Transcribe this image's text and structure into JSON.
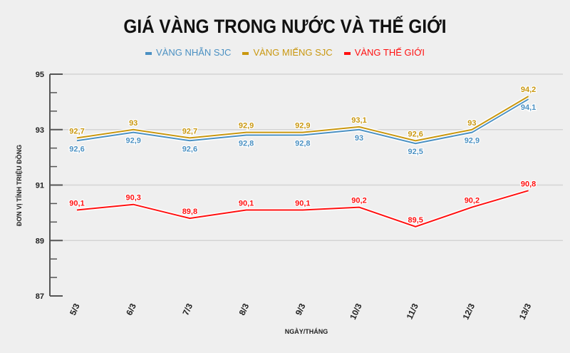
{
  "chart_data": {
    "type": "line",
    "title": "GIÁ VÀNG TRONG NƯỚC VÀ THẾ GIỚI",
    "xlabel": "NGÀY/THÁNG",
    "ylabel": "ĐƠN VỊ TÍNH TRIỆU ĐỒNG",
    "categories": [
      "5/3",
      "6/3",
      "7/3",
      "8/3",
      "9/3",
      "10/3",
      "11/3",
      "12/3",
      "13/3"
    ],
    "ylim": [
      87,
      95
    ],
    "yticks": [
      "95",
      "93",
      "91",
      "89",
      "87"
    ],
    "grid": true,
    "legend_position": "top",
    "series": [
      {
        "name": "VÀNG NHẪN SJC",
        "color": "#4a90c2",
        "values": [
          92.6,
          92.9,
          92.6,
          92.8,
          92.8,
          93.0,
          92.5,
          92.9,
          94.1
        ],
        "labels": [
          "92,6",
          "92,9",
          "92,6",
          "92,8",
          "92,8",
          "93",
          "92,5",
          "92,9",
          "94,1"
        ]
      },
      {
        "name": "VÀNG MIẾNG SJC",
        "color": "#c9970f",
        "values": [
          92.7,
          93.0,
          92.7,
          92.9,
          92.9,
          93.1,
          92.6,
          93.0,
          94.2
        ],
        "labels": [
          "92,7",
          "93",
          "92,7",
          "92,9",
          "92,9",
          "93,1",
          "92,6",
          "93",
          "94,2"
        ]
      },
      {
        "name": "VÀNG THẾ GIỚI",
        "color": "#ff1010",
        "values": [
          90.1,
          90.3,
          89.8,
          90.1,
          90.1,
          90.2,
          89.5,
          90.2,
          90.8
        ],
        "labels": [
          "90,1",
          "90,3",
          "89,8",
          "90,1",
          "90,1",
          "90,2",
          "89,5",
          "90,2",
          "90,8"
        ]
      }
    ]
  }
}
